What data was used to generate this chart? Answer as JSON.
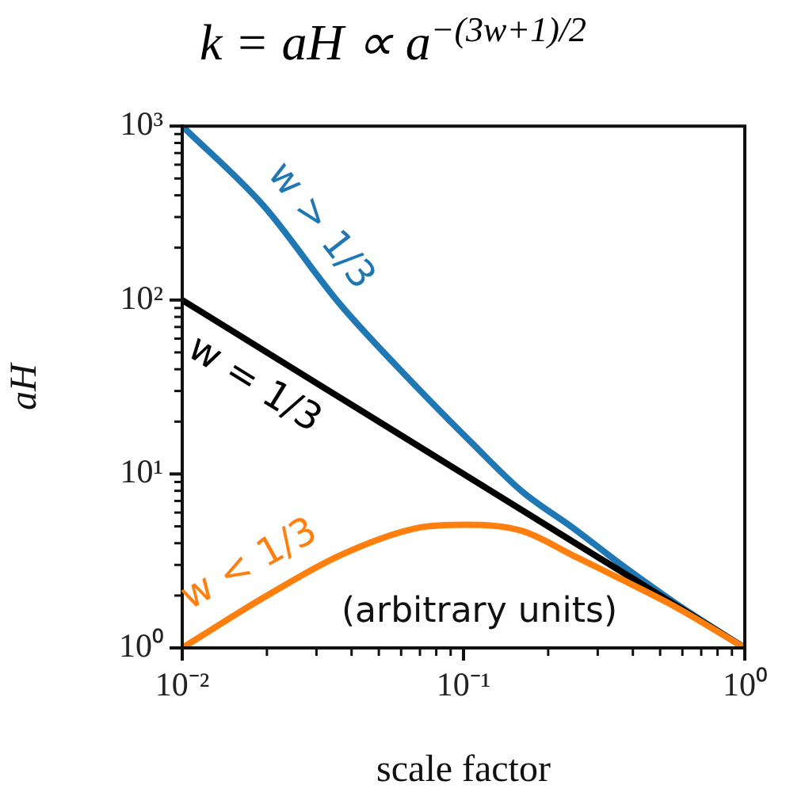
{
  "chart_data": {
    "type": "line",
    "title": "k = aH ∝ a$^{−(3w+1)/2}$",
    "xlabel": "scale factor",
    "ylabel": "aH",
    "log": "xy",
    "grid": false,
    "legend": false,
    "marker": "none",
    "line_style": "solid",
    "xlim": [
      0.01,
      1
    ],
    "ylim": [
      1,
      1000
    ],
    "xticks": [
      {
        "value": 0.01,
        "label": "10⁻²"
      },
      {
        "value": 0.02,
        "label": null
      },
      {
        "value": 0.03,
        "label": null
      },
      {
        "value": 0.04,
        "label": null
      },
      {
        "value": 0.05,
        "label": null
      },
      {
        "value": 0.06,
        "label": null
      },
      {
        "value": 0.07,
        "label": null
      },
      {
        "value": 0.08,
        "label": null
      },
      {
        "value": 0.09,
        "label": null
      },
      {
        "value": 0.1,
        "label": "10⁻¹"
      },
      {
        "value": 0.2,
        "label": null
      },
      {
        "value": 0.3,
        "label": null
      },
      {
        "value": 0.4,
        "label": null
      },
      {
        "value": 0.5,
        "label": null
      },
      {
        "value": 0.6,
        "label": null
      },
      {
        "value": 0.7,
        "label": null
      },
      {
        "value": 0.8,
        "label": null
      },
      {
        "value": 0.9,
        "label": null
      },
      {
        "value": 1,
        "label": "10⁰"
      }
    ],
    "yticks": [
      {
        "value": 1,
        "label": "10⁰"
      },
      {
        "value": 2,
        "label": null
      },
      {
        "value": 3,
        "label": null
      },
      {
        "value": 4,
        "label": null
      },
      {
        "value": 5,
        "label": null
      },
      {
        "value": 6,
        "label": null
      },
      {
        "value": 7,
        "label": null
      },
      {
        "value": 8,
        "label": null
      },
      {
        "value": 9,
        "label": null
      },
      {
        "value": 10,
        "label": "10¹"
      },
      {
        "value": 20,
        "label": null
      },
      {
        "value": 30,
        "label": null
      },
      {
        "value": 40,
        "label": null
      },
      {
        "value": 50,
        "label": null
      },
      {
        "value": 60,
        "label": null
      },
      {
        "value": 70,
        "label": null
      },
      {
        "value": 80,
        "label": null
      },
      {
        "value": 90,
        "label": null
      },
      {
        "value": 100,
        "label": "10²"
      },
      {
        "value": 200,
        "label": null
      },
      {
        "value": 300,
        "label": null
      },
      {
        "value": 400,
        "label": null
      },
      {
        "value": 500,
        "label": null
      },
      {
        "value": 600,
        "label": null
      },
      {
        "value": 700,
        "label": null
      },
      {
        "value": 800,
        "label": null
      },
      {
        "value": 900,
        "label": null
      },
      {
        "value": 1000,
        "label": "10³"
      }
    ],
    "annotations": [
      "(arbitrary units)"
    ],
    "series": [
      {
        "name": "w > 1/3",
        "color": "#1f77b4",
        "x": [
          0.01,
          0.0195,
          0.0363,
          0.069,
          0.107,
          0.162,
          0.245,
          0.37,
          0.575,
          1
        ],
        "values": [
          1000,
          347,
          95,
          31,
          15.1,
          7.9,
          4.9,
          2.95,
          1.78,
          1
        ]
      },
      {
        "name": "w = 1/3",
        "color": "#000000",
        "x": [
          0.01,
          0.1,
          1
        ],
        "values": [
          100,
          10,
          1
        ]
      },
      {
        "name": "w < 1/3",
        "color": "#ff7f0e",
        "x": [
          0.01,
          0.0195,
          0.0363,
          0.069,
          0.102,
          0.162,
          0.245,
          0.37,
          0.575,
          1
        ],
        "values": [
          1,
          1.95,
          3.4,
          4.9,
          5.1,
          4.7,
          3.4,
          2.45,
          1.7,
          1
        ]
      }
    ]
  }
}
